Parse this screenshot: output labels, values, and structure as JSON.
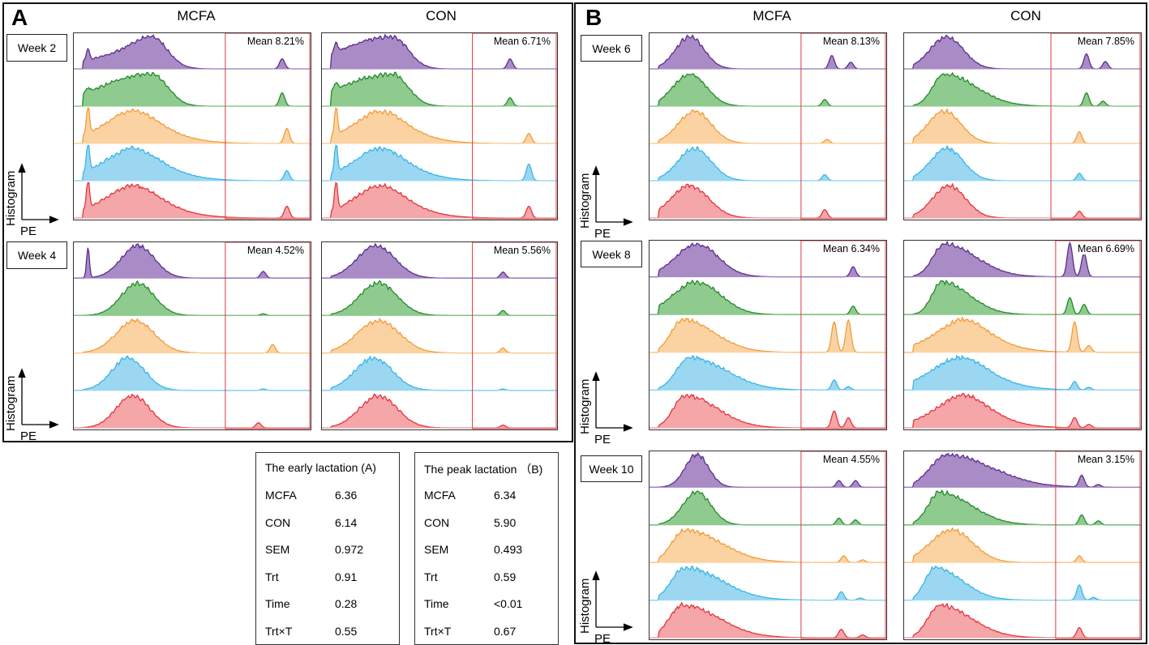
{
  "panel_a": {
    "letter": "A",
    "col_mcfa": "MCFA",
    "col_con": "CON",
    "weeks": [
      {
        "label": "Week 2",
        "mcfa_mean": "Mean 8.21%",
        "con_mean": "Mean 6.71%"
      },
      {
        "label": "Week 4",
        "mcfa_mean": "Mean 4.52%",
        "con_mean": "Mean 5.56%"
      }
    ]
  },
  "panel_b": {
    "letter": "B",
    "col_mcfa": "MCFA",
    "col_con": "CON",
    "weeks": [
      {
        "label": "Week 6",
        "mcfa_mean": "Mean 8.13%",
        "con_mean": "Mean 7.85%"
      },
      {
        "label": "Week 8",
        "mcfa_mean": "Mean 6.34%",
        "con_mean": "Mean 6.69%"
      },
      {
        "label": "Week 10",
        "mcfa_mean": "Mean 4.55%",
        "con_mean": "Mean 3.15%"
      }
    ]
  },
  "axis": {
    "y": "Histogram",
    "x": "PE"
  },
  "tables": [
    {
      "title": "The early lactation (A)",
      "rows": [
        [
          "MCFA",
          "6.36"
        ],
        [
          "CON",
          "6.14"
        ],
        [
          "SEM",
          "0.972"
        ],
        [
          "Trt",
          "0.91"
        ],
        [
          "Time",
          "0.28"
        ],
        [
          "Trt×T",
          "0.55"
        ]
      ]
    },
    {
      "title": "The peak lactation （B)",
      "rows": [
        [
          "MCFA",
          "6.34"
        ],
        [
          "CON",
          "5.90"
        ],
        [
          "SEM",
          "0.493"
        ],
        [
          "Trt",
          "0.59"
        ],
        [
          "Time",
          "<0.01"
        ],
        [
          "Trt×T",
          "0.67"
        ]
      ]
    }
  ],
  "chart_data": {
    "type": "area",
    "description_free": true,
    "xlabel": "PE",
    "ylabel": "Histogram",
    "gate_color": "#e0393e",
    "series_colors": [
      {
        "stroke": "#5b2d8e",
        "fill": "#a98bc6"
      },
      {
        "stroke": "#238a2a",
        "fill": "#8fca8f"
      },
      {
        "stroke": "#f29b38",
        "fill": "#fbd3a3"
      },
      {
        "stroke": "#35b6e6",
        "fill": "#9cd7f1"
      },
      {
        "stroke": "#e6333b",
        "fill": "#f4a6a9"
      }
    ]
  }
}
